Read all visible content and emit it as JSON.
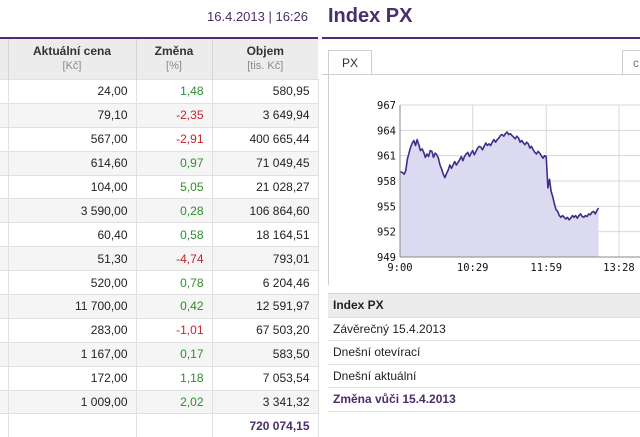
{
  "header": {
    "datetime": "16.4.2013 | 16:26"
  },
  "table": {
    "columns": [
      {
        "label": "Aktuální cena",
        "unit": "[Kč]"
      },
      {
        "label": "Změna",
        "unit": "[%]"
      },
      {
        "label": "Objem",
        "unit": "[tis. Kč]"
      }
    ],
    "rows": [
      {
        "price": "24,00",
        "change": "1,48",
        "volume": "580,95",
        "dir": "pos"
      },
      {
        "price": "79,10",
        "change": "-2,35",
        "volume": "3 649,94",
        "dir": "neg"
      },
      {
        "price": "567,00",
        "change": "-2,91",
        "volume": "400 665,44",
        "dir": "neg"
      },
      {
        "price": "614,60",
        "change": "0,97",
        "volume": "71 049,45",
        "dir": "pos"
      },
      {
        "price": "104,00",
        "change": "5,05",
        "volume": "21 028,27",
        "dir": "pos"
      },
      {
        "price": "3 590,00",
        "change": "0,28",
        "volume": "106 864,60",
        "dir": "pos"
      },
      {
        "price": "60,40",
        "change": "0,58",
        "volume": "18 164,51",
        "dir": "pos"
      },
      {
        "price": "51,30",
        "change": "-4,74",
        "volume": "793,01",
        "dir": "neg"
      },
      {
        "price": "520,00",
        "change": "0,78",
        "volume": "6 204,46",
        "dir": "pos"
      },
      {
        "price": "11 700,00",
        "change": "0,42",
        "volume": "12 591,97",
        "dir": "pos"
      },
      {
        "price": "283,00",
        "change": "-1,01",
        "volume": "67 503,20",
        "dir": "neg"
      },
      {
        "price": "1 167,00",
        "change": "0,17",
        "volume": "583,50",
        "dir": "pos"
      },
      {
        "price": "172,00",
        "change": "1,18",
        "volume": "7 053,54",
        "dir": "pos"
      },
      {
        "price": "1 009,00",
        "change": "2,02",
        "volume": "3 341,32",
        "dir": "pos"
      }
    ],
    "total_volume": "720 074,15"
  },
  "index_panel": {
    "title": "Index PX",
    "tab_label": "PX",
    "tab2_label": "c",
    "info_rows": [
      "Index PX",
      "Závěrečný 15.4.2013",
      "Dnešní otevírací",
      "Dnešní aktuální",
      "Změna vůči 15.4.2013"
    ]
  },
  "chart_data": {
    "type": "area",
    "x_ticks": [
      "9:00",
      "10:29",
      "11:59",
      "13:28"
    ],
    "y_ticks": [
      967,
      964,
      961,
      958,
      955,
      952,
      949
    ],
    "ylim": [
      949,
      967
    ],
    "xlim_minutes": [
      0,
      295
    ],
    "grid": true,
    "line_color": "#3c2f8a",
    "fill_color": "#dcdaf0",
    "points": [
      [
        0,
        959.1
      ],
      [
        3,
        959.0
      ],
      [
        5,
        958.8
      ],
      [
        7,
        959.2
      ],
      [
        9,
        960.6
      ],
      [
        11,
        961.3
      ],
      [
        13,
        962.0
      ],
      [
        15,
        962.5
      ],
      [
        17,
        962.8
      ],
      [
        19,
        962.2
      ],
      [
        21,
        962.9
      ],
      [
        23,
        962.3
      ],
      [
        25,
        961.6
      ],
      [
        27,
        961.8
      ],
      [
        29,
        961.4
      ],
      [
        31,
        960.8
      ],
      [
        33,
        961.2
      ],
      [
        35,
        960.9
      ],
      [
        37,
        961.6
      ],
      [
        39,
        961.5
      ],
      [
        41,
        960.8
      ],
      [
        43,
        961.3
      ],
      [
        45,
        961.1
      ],
      [
        47,
        960.7
      ],
      [
        49,
        959.9
      ],
      [
        51,
        959.4
      ],
      [
        53,
        958.8
      ],
      [
        55,
        958.4
      ],
      [
        57,
        958.9
      ],
      [
        59,
        959.3
      ],
      [
        61,
        959.9
      ],
      [
        63,
        959.5
      ],
      [
        65,
        959.9
      ],
      [
        67,
        960.3
      ],
      [
        69,
        959.9
      ],
      [
        71,
        960.2
      ],
      [
        73,
        960.5
      ],
      [
        75,
        960.9
      ],
      [
        77,
        960.4
      ],
      [
        79,
        960.9
      ],
      [
        81,
        961.2
      ],
      [
        83,
        961.4
      ],
      [
        85,
        960.9
      ],
      [
        87,
        961.3
      ],
      [
        89,
        961.6
      ],
      [
        91,
        961.1
      ],
      [
        93,
        961.5
      ],
      [
        95,
        961.9
      ],
      [
        97,
        962.1
      ],
      [
        99,
        962.0
      ],
      [
        101,
        961.7
      ],
      [
        103,
        962.1
      ],
      [
        105,
        962.5
      ],
      [
        107,
        962.2
      ],
      [
        109,
        962.4
      ],
      [
        111,
        962.2
      ],
      [
        113,
        962.6
      ],
      [
        115,
        962.9
      ],
      [
        117,
        962.6
      ],
      [
        119,
        962.9
      ],
      [
        121,
        963.1
      ],
      [
        123,
        963.4
      ],
      [
        125,
        963.5
      ],
      [
        127,
        963.3
      ],
      [
        129,
        963.6
      ],
      [
        131,
        963.8
      ],
      [
        133,
        963.5
      ],
      [
        135,
        963.6
      ],
      [
        137,
        963.4
      ],
      [
        139,
        963.2
      ],
      [
        141,
        963.0
      ],
      [
        143,
        963.3
      ],
      [
        145,
        963.1
      ],
      [
        147,
        962.6
      ],
      [
        149,
        962.8
      ],
      [
        151,
        962.5
      ],
      [
        153,
        962.3
      ],
      [
        155,
        962.6
      ],
      [
        157,
        962.4
      ],
      [
        159,
        961.9
      ],
      [
        161,
        962.1
      ],
      [
        163,
        961.7
      ],
      [
        165,
        961.4
      ],
      [
        167,
        961.2
      ],
      [
        169,
        961.5
      ],
      [
        171,
        961.3
      ],
      [
        173,
        961.0
      ],
      [
        175,
        960.7
      ],
      [
        177,
        961.0
      ],
      [
        179,
        960.9
      ],
      [
        181,
        957.2
      ],
      [
        183,
        958.2
      ],
      [
        185,
        956.8
      ],
      [
        187,
        956.1
      ],
      [
        189,
        955.3
      ],
      [
        191,
        954.6
      ],
      [
        193,
        954.4
      ],
      [
        195,
        953.9
      ],
      [
        197,
        953.7
      ],
      [
        199,
        953.9
      ],
      [
        201,
        953.7
      ],
      [
        203,
        953.5
      ],
      [
        205,
        953.7
      ],
      [
        207,
        953.4
      ],
      [
        209,
        953.6
      ],
      [
        211,
        953.9
      ],
      [
        213,
        953.7
      ],
      [
        215,
        953.9
      ],
      [
        217,
        953.6
      ],
      [
        219,
        953.9
      ],
      [
        221,
        954.1
      ],
      [
        223,
        953.8
      ],
      [
        225,
        953.7
      ],
      [
        227,
        953.9
      ],
      [
        229,
        953.8
      ],
      [
        231,
        954.1
      ],
      [
        233,
        954.0
      ],
      [
        235,
        954.3
      ],
      [
        237,
        954.4
      ],
      [
        239,
        954.1
      ],
      [
        241,
        954.5
      ],
      [
        243,
        954.8
      ]
    ]
  }
}
